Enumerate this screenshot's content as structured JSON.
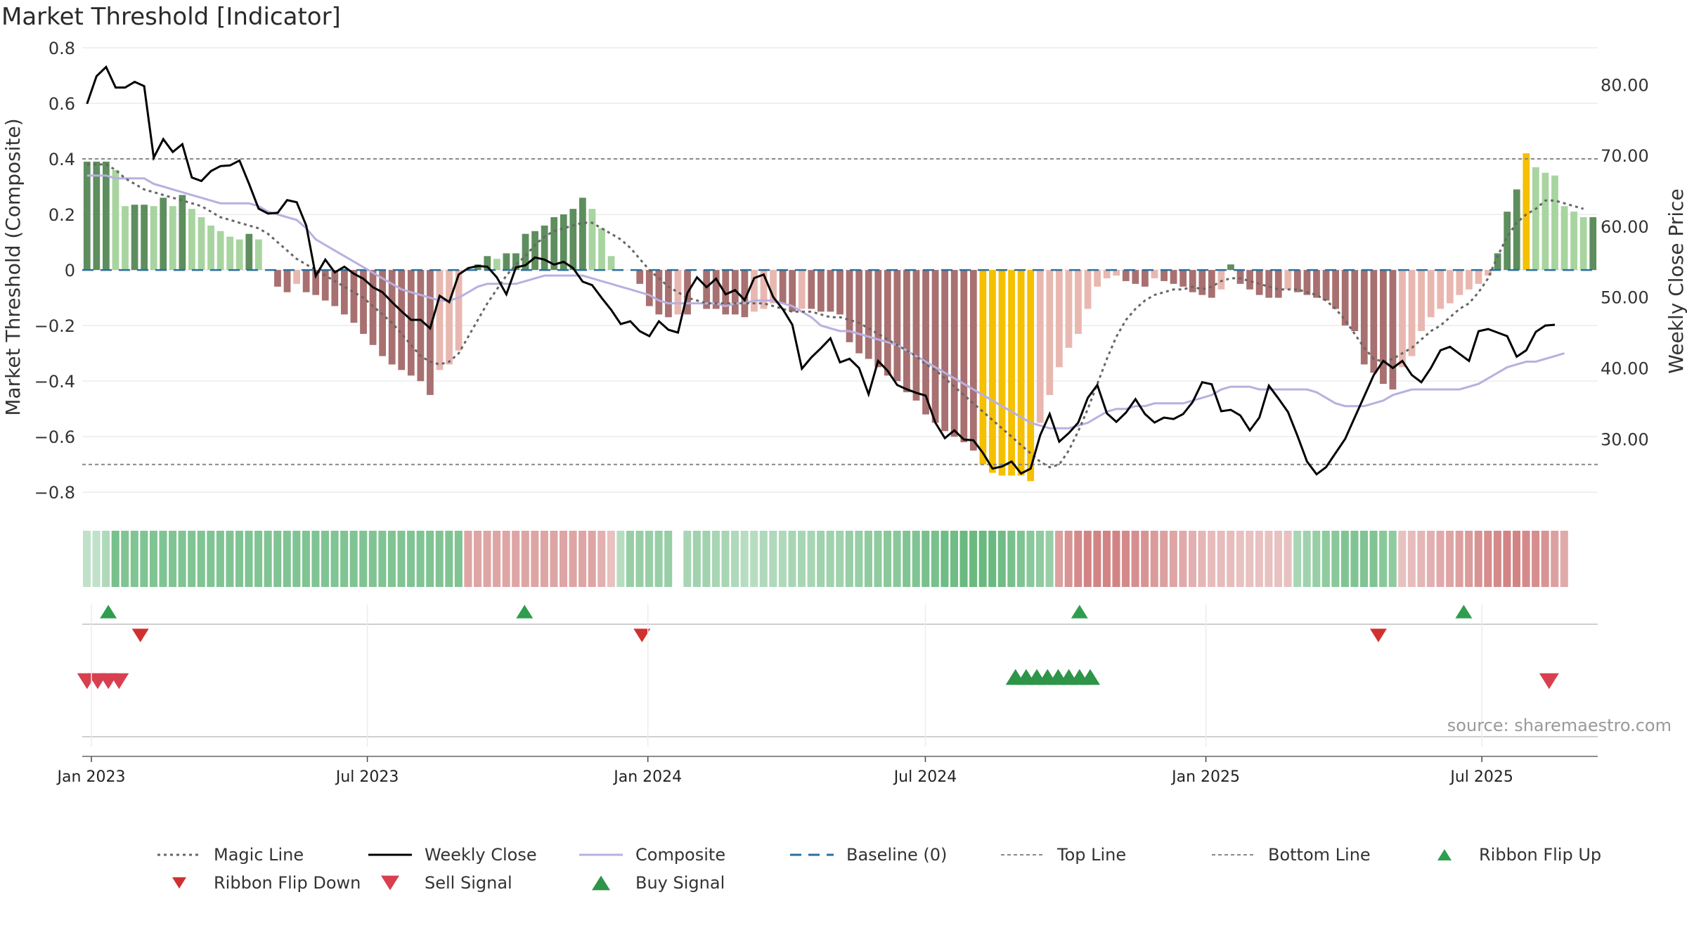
{
  "title": "Market Threshold [Indicator]",
  "source_note": "source: sharemaestro.com",
  "colors": {
    "magic_line": "#666666",
    "weekly_close": "#000000",
    "composite": "#b8b0e0",
    "baseline": "#2a6f9e",
    "threshold_line": "#888888",
    "bar_extreme": "#f5c000",
    "bar_pos_dark": "#5e8e5e",
    "bar_pos_light": "#a8d4a0",
    "bar_neg_dark": "#a87070",
    "bar_neg_light": "#e8b8b0",
    "flip_up": "#2e9e4e",
    "flip_down": "#d03030",
    "sell": "#d84050",
    "buy": "#2e9448"
  },
  "legend": [
    {
      "label": "Magic Line",
      "style": "dotted",
      "color": "#666666"
    },
    {
      "label": "Weekly Close",
      "style": "solid",
      "color": "#000000"
    },
    {
      "label": "Composite",
      "style": "solid",
      "color": "#b8b0e0"
    },
    {
      "label": "Baseline (0)",
      "style": "dashed",
      "color": "#2a6f9e"
    },
    {
      "label": "Top Line",
      "style": "dashed-thin",
      "color": "#888888"
    },
    {
      "label": "Bottom Line",
      "style": "dashed-thin",
      "color": "#888888"
    },
    {
      "label": "Ribbon Flip Up",
      "style": "triangle-up",
      "color": "#2e9e4e"
    },
    {
      "label": "Ribbon Flip Down",
      "style": "triangle-down",
      "color": "#d03030"
    },
    {
      "label": "Sell Signal",
      "style": "triangle-down-large",
      "color": "#d84050"
    },
    {
      "label": "Buy Signal",
      "style": "triangle-up-large",
      "color": "#2e9448"
    }
  ],
  "chart_data": {
    "type": "bar",
    "ylabel_left": "Market Threshold (Composite)",
    "ylabel_right": "Weekly Close Price",
    "ylim_left": [
      -0.85,
      0.82
    ],
    "ylim_right": [
      20.5,
      86
    ],
    "yticks_left": [
      "0.8",
      "0.6",
      "0.4",
      "0.2",
      "0",
      "−0.2",
      "−0.4",
      "−0.6",
      "−0.8"
    ],
    "yticks_left_values": [
      0.8,
      0.6,
      0.4,
      0.2,
      0,
      -0.2,
      -0.4,
      -0.6,
      -0.8
    ],
    "yticks_right": [
      "80.00",
      "70.00",
      "60.00",
      "50.00",
      "40.00",
      "30.00"
    ],
    "yticks_right_values": [
      80,
      70,
      60,
      50,
      40,
      30
    ],
    "xticks": [
      "Jan 2023",
      "Jul 2023",
      "Jan 2024",
      "Jul 2024",
      "Jan 2025",
      "Jul 2025"
    ],
    "x_start": "2022-12-26",
    "x_end": "2025-09-15",
    "top_line": 0.4,
    "bottom_line": -0.7,
    "baseline": 0,
    "composite_bars": [
      0.39,
      0.39,
      0.39,
      0.36,
      0.23,
      0.235,
      0.235,
      0.23,
      0.26,
      0.23,
      0.27,
      0.22,
      0.19,
      0.16,
      0.14,
      0.12,
      0.11,
      0.13,
      0.11,
      0,
      -0.06,
      -0.08,
      -0.05,
      -0.08,
      -0.09,
      -0.11,
      -0.13,
      -0.16,
      -0.19,
      -0.23,
      -0.27,
      -0.31,
      -0.34,
      -0.36,
      -0.38,
      -0.4,
      -0.45,
      -0.36,
      -0.34,
      -0.29,
      0,
      0.02,
      0.05,
      0.04,
      0.06,
      0.06,
      0.13,
      0.14,
      0.16,
      0.19,
      0.2,
      0.22,
      0.26,
      0.22,
      0.15,
      0.05,
      0,
      0,
      -0.05,
      -0.13,
      -0.16,
      -0.17,
      -0.16,
      -0.16,
      0,
      -0.14,
      -0.14,
      -0.16,
      -0.16,
      -0.17,
      -0.15,
      -0.14,
      -0.12,
      -0.12,
      -0.15,
      -0.14,
      -0.14,
      -0.15,
      -0.15,
      -0.16,
      -0.26,
      -0.3,
      -0.32,
      -0.35,
      -0.38,
      -0.4,
      -0.44,
      -0.47,
      -0.52,
      -0.55,
      -0.58,
      -0.6,
      -0.62,
      -0.65,
      -0.7,
      -0.73,
      -0.74,
      -0.74,
      -0.74,
      -0.76,
      -0.55,
      -0.45,
      -0.35,
      -0.28,
      -0.23,
      -0.14,
      -0.06,
      -0.03,
      -0.02,
      -0.04,
      -0.05,
      -0.06,
      -0.03,
      -0.04,
      -0.05,
      -0.06,
      -0.08,
      -0.09,
      -0.1,
      -0.07,
      0.02,
      -0.05,
      -0.07,
      -0.09,
      -0.1,
      -0.1,
      -0.07,
      -0.08,
      -0.09,
      -0.1,
      -0.11,
      -0.14,
      -0.2,
      -0.22,
      -0.34,
      -0.37,
      -0.41,
      -0.43,
      -0.35,
      -0.31,
      -0.22,
      -0.17,
      -0.14,
      -0.12,
      -0.09,
      -0.07,
      -0.05,
      -0.02,
      0.06,
      0.21,
      0.29,
      0.42,
      0.37,
      0.35,
      0.34,
      0.23,
      0.21,
      0.19,
      0.19
    ],
    "weekly_close": [
      77.3,
      81.2,
      82.5,
      79.6,
      79.6,
      80.4,
      79.8,
      69.7,
      72.3,
      70.5,
      71.6,
      66.9,
      66.4,
      67.8,
      68.5,
      68.6,
      69.3,
      66.0,
      62.5,
      61.8,
      61.9,
      63.7,
      63.4,
      60.1,
      53.0,
      55.3,
      53.5,
      54.3,
      53.3,
      52.6,
      51.4,
      50.7,
      49.3,
      48.0,
      46.8,
      46.8,
      45.6,
      50.2,
      49.3,
      53.2,
      54.1,
      54.4,
      54.3,
      52.8,
      50.4,
      54.2,
      54.5,
      55.6,
      55.3,
      54.6,
      55.0,
      54.1,
      52.2,
      51.7,
      49.9,
      48.2,
      46.2,
      46.6,
      45.2,
      44.5,
      46.6,
      45.4,
      45.0,
      50.6,
      52.8,
      51.4,
      52.6,
      50.4,
      51.0,
      49.6,
      52.7,
      53.2,
      50.0,
      48.3,
      46.1,
      39.9,
      41.5,
      42.8,
      44.2,
      40.8,
      41.3,
      40.0,
      36.3,
      41.0,
      39.6,
      37.6,
      37.0,
      36.5,
      36.1,
      32.3,
      30.1,
      31.2,
      29.9,
      29.8,
      28.0,
      25.8,
      26.1,
      26.8,
      25.1,
      25.8,
      30.5,
      33.5,
      29.6,
      30.8,
      32.3,
      35.8,
      37.6,
      33.6,
      32.4,
      33.7,
      35.6,
      33.5,
      32.3,
      33.0,
      32.8,
      33.5,
      35.2,
      38.0,
      37.7,
      33.9,
      34.1,
      33.3,
      31.2,
      33.0,
      37.5,
      35.7,
      33.8,
      30.4,
      26.8,
      25.0,
      26.0,
      28.0,
      30.0,
      33.0,
      36.0,
      39.0,
      41.0,
      40.0,
      41.0,
      39.0,
      38.0,
      40.0,
      42.5,
      43.0,
      42.0,
      41.0,
      45.2,
      45.5,
      45.0,
      44.5,
      41.6,
      42.5,
      45.1,
      46.0,
      46.1
    ],
    "composite_line": [
      0.34,
      0.34,
      0.34,
      0.33,
      0.33,
      0.33,
      0.33,
      0.31,
      0.3,
      0.29,
      0.28,
      0.27,
      0.26,
      0.25,
      0.24,
      0.24,
      0.24,
      0.24,
      0.23,
      0.21,
      0.2,
      0.19,
      0.18,
      0.15,
      0.11,
      0.09,
      0.07,
      0.05,
      0.03,
      0.01,
      -0.01,
      -0.03,
      -0.05,
      -0.07,
      -0.08,
      -0.09,
      -0.1,
      -0.11,
      -0.11,
      -0.1,
      -0.08,
      -0.06,
      -0.05,
      -0.05,
      -0.05,
      -0.05,
      -0.04,
      -0.03,
      -0.02,
      -0.02,
      -0.02,
      -0.02,
      -0.02,
      -0.03,
      -0.04,
      -0.05,
      -0.06,
      -0.07,
      -0.08,
      -0.09,
      -0.11,
      -0.12,
      -0.12,
      -0.12,
      -0.12,
      -0.12,
      -0.12,
      -0.13,
      -0.12,
      -0.12,
      -0.11,
      -0.11,
      -0.11,
      -0.12,
      -0.13,
      -0.15,
      -0.17,
      -0.2,
      -0.21,
      -0.22,
      -0.22,
      -0.23,
      -0.24,
      -0.25,
      -0.26,
      -0.27,
      -0.29,
      -0.31,
      -0.33,
      -0.35,
      -0.37,
      -0.39,
      -0.41,
      -0.43,
      -0.45,
      -0.47,
      -0.49,
      -0.51,
      -0.53,
      -0.55,
      -0.56,
      -0.57,
      -0.57,
      -0.57,
      -0.56,
      -0.55,
      -0.53,
      -0.51,
      -0.5,
      -0.5,
      -0.49,
      -0.49,
      -0.48,
      -0.48,
      -0.48,
      -0.48,
      -0.47,
      -0.46,
      -0.45,
      -0.43,
      -0.42,
      -0.42,
      -0.42,
      -0.43,
      -0.43,
      -0.43,
      -0.43,
      -0.43,
      -0.43,
      -0.44,
      -0.46,
      -0.48,
      -0.49,
      -0.49,
      -0.49,
      -0.48,
      -0.47,
      -0.45,
      -0.44,
      -0.43,
      -0.43,
      -0.43,
      -0.43,
      -0.43,
      -0.43,
      -0.42,
      -0.41,
      -0.39,
      -0.37,
      -0.35,
      -0.34,
      -0.33,
      -0.33,
      -0.32,
      -0.31,
      -0.3
    ],
    "magic_line": [
      0.38,
      0.38,
      0.38,
      0.36,
      0.33,
      0.31,
      0.29,
      0.28,
      0.27,
      0.26,
      0.25,
      0.24,
      0.23,
      0.21,
      0.19,
      0.18,
      0.17,
      0.16,
      0.15,
      0.13,
      0.1,
      0.07,
      0.04,
      0.02,
      0.0,
      -0.02,
      -0.04,
      -0.06,
      -0.08,
      -0.1,
      -0.13,
      -0.16,
      -0.19,
      -0.23,
      -0.27,
      -0.31,
      -0.33,
      -0.34,
      -0.33,
      -0.3,
      -0.24,
      -0.18,
      -0.12,
      -0.07,
      -0.02,
      0.02,
      0.05,
      0.09,
      0.12,
      0.14,
      0.15,
      0.16,
      0.17,
      0.17,
      0.15,
      0.13,
      0.11,
      0.08,
      0.04,
      0.0,
      -0.03,
      -0.06,
      -0.08,
      -0.1,
      -0.11,
      -0.12,
      -0.12,
      -0.12,
      -0.12,
      -0.12,
      -0.12,
      -0.12,
      -0.13,
      -0.14,
      -0.15,
      -0.15,
      -0.15,
      -0.16,
      -0.17,
      -0.17,
      -0.18,
      -0.19,
      -0.21,
      -0.23,
      -0.25,
      -0.27,
      -0.29,
      -0.31,
      -0.34,
      -0.36,
      -0.39,
      -0.42,
      -0.45,
      -0.48,
      -0.51,
      -0.54,
      -0.57,
      -0.6,
      -0.63,
      -0.66,
      -0.69,
      -0.71,
      -0.7,
      -0.65,
      -0.58,
      -0.5,
      -0.41,
      -0.32,
      -0.24,
      -0.18,
      -0.14,
      -0.11,
      -0.09,
      -0.08,
      -0.07,
      -0.07,
      -0.06,
      -0.07,
      -0.06,
      -0.04,
      -0.03,
      -0.03,
      -0.04,
      -0.05,
      -0.06,
      -0.07,
      -0.07,
      -0.07,
      -0.08,
      -0.09,
      -0.11,
      -0.14,
      -0.18,
      -0.23,
      -0.28,
      -0.32,
      -0.33,
      -0.32,
      -0.3,
      -0.28,
      -0.25,
      -0.22,
      -0.2,
      -0.17,
      -0.14,
      -0.12,
      -0.08,
      -0.03,
      0.05,
      0.12,
      0.17,
      0.2,
      0.22,
      0.25,
      0.25,
      0.24,
      0.23,
      0.22
    ],
    "ribbon": [
      0.15,
      0.15,
      0.25,
      0.6,
      0.55,
      0.55,
      0.55,
      0.55,
      0.55,
      0.55,
      0.55,
      0.55,
      0.55,
      0.55,
      0.55,
      0.55,
      0.55,
      0.55,
      0.55,
      0.55,
      0.55,
      0.55,
      0.55,
      0.55,
      0.55,
      0.55,
      0.55,
      0.55,
      0.55,
      0.55,
      0.55,
      0.55,
      0.55,
      0.55,
      0.55,
      0.55,
      0.55,
      0.55,
      0.55,
      0.55,
      -0.55,
      -0.55,
      -0.55,
      -0.55,
      -0.55,
      -0.55,
      -0.55,
      -0.55,
      -0.55,
      -0.55,
      -0.55,
      -0.55,
      -0.55,
      -0.55,
      -0.45,
      -0.3,
      0.2,
      0.4,
      0.4,
      0.4,
      0.4,
      0.4,
      null,
      0.3,
      0.35,
      0.35,
      0.3,
      0.3,
      0.25,
      0.2,
      0.2,
      0.25,
      0.25,
      0.25,
      0.3,
      0.3,
      0.3,
      0.35,
      0.35,
      0.35,
      0.4,
      0.4,
      0.45,
      0.45,
      0.5,
      0.5,
      0.55,
      0.55,
      0.6,
      0.6,
      0.65,
      0.65,
      0.7,
      0.7,
      0.7,
      0.7,
      0.65,
      0.6,
      0.55,
      0.5,
      0.45,
      0.4,
      -0.6,
      -0.7,
      -0.8,
      -0.85,
      -0.85,
      -0.85,
      -0.85,
      -0.8,
      -0.75,
      -0.7,
      -0.65,
      -0.6,
      -0.55,
      -0.5,
      -0.45,
      -0.4,
      -0.35,
      -0.35,
      -0.35,
      -0.3,
      -0.3,
      -0.3,
      -0.3,
      -0.3,
      -0.3,
      0.3,
      0.35,
      0.4,
      0.45,
      0.5,
      0.55,
      0.55,
      0.55,
      0.55,
      0.5,
      0.45,
      -0.3,
      -0.35,
      -0.4,
      -0.45,
      -0.5,
      -0.55,
      -0.6,
      -0.65,
      -0.7,
      -0.75,
      -0.8,
      -0.85,
      -0.85,
      -0.8,
      -0.75,
      -0.7,
      -0.6,
      -0.5
    ],
    "ribbon_flip_up": [
      "2023-01-09",
      "2023-10-09",
      "2024-10-07",
      "2025-06-16"
    ],
    "ribbon_flip_down": [
      "2023-01-30",
      "2023-12-25",
      "2025-04-21"
    ],
    "sell_signals": [
      "2022-12-26",
      "2023-01-02",
      "2023-01-09",
      "2023-01-16",
      "2025-08-11"
    ],
    "buy_signals": [
      "2024-08-26",
      "2024-09-02",
      "2024-09-09",
      "2024-09-16",
      "2024-09-23",
      "2024-09-30",
      "2024-10-07",
      "2024-10-14"
    ]
  }
}
